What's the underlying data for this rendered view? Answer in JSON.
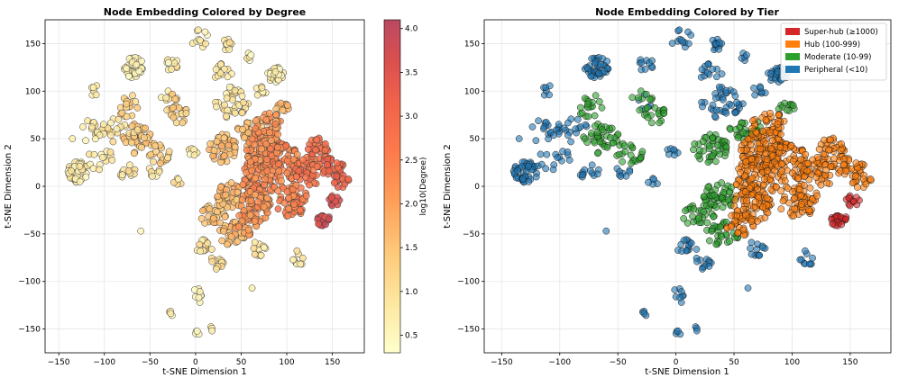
{
  "chart_data": [
    {
      "type": "scatter",
      "title": "Node Embedding Colored by Degree",
      "xlabel": "t-SNE Dimension 1",
      "ylabel": "t-SNE Dimension 2",
      "xlim": [
        -165,
        185
      ],
      "ylim": [
        -175,
        175
      ],
      "xticks": [
        -150,
        -100,
        -50,
        0,
        50,
        100,
        150
      ],
      "yticks": [
        -150,
        -100,
        -50,
        0,
        50,
        100,
        150
      ],
      "grid": true,
      "colorbar": {
        "label": "log10(Degree)",
        "range": [
          0.3,
          4.1
        ],
        "ticks": [
          "0.5",
          "1.0",
          "1.5",
          "2.0",
          "2.5",
          "3.0",
          "3.5",
          "4.0"
        ],
        "tick_values": [
          0.5,
          1.0,
          1.5,
          2.0,
          2.5,
          3.0,
          3.5,
          4.0
        ],
        "colors": [
          "#ffffcc",
          "#fde7a0",
          "#fec97a",
          "#fea05a",
          "#fc7b4c",
          "#f0634b",
          "#d94f4f",
          "#b84a62"
        ]
      }
    },
    {
      "type": "scatter",
      "title": "Node Embedding Colored by Tier",
      "xlabel": "t-SNE Dimension 1",
      "ylabel": "t-SNE Dimension 2",
      "xlim": [
        -165,
        185
      ],
      "ylim": [
        -175,
        175
      ],
      "xticks": [
        -150,
        -100,
        -50,
        0,
        50,
        100,
        150
      ],
      "yticks": [
        -150,
        -100,
        -50,
        0,
        50,
        100,
        150
      ],
      "grid": true,
      "legend": {
        "position": "top-right",
        "entries": [
          {
            "label": "Super-hub (≥1000)",
            "color": "#d62728"
          },
          {
            "label": "Hub (100-999)",
            "color": "#ff7f0e"
          },
          {
            "label": "Moderate (10-99)",
            "color": "#2ca02c"
          },
          {
            "label": "Peripheral (<10)",
            "color": "#1f77b4"
          }
        ]
      }
    }
  ],
  "clusters": [
    {
      "cx": -128,
      "cy": 15,
      "r": 12,
      "n": 45,
      "tier": "peripheral",
      "deg": 0.7
    },
    {
      "cx": -68,
      "cy": 125,
      "r": 11,
      "n": 40,
      "tier": "peripheral",
      "deg": 0.6
    },
    {
      "cx": 88,
      "cy": 118,
      "r": 9,
      "n": 28,
      "tier": "peripheral",
      "deg": 0.6
    },
    {
      "cx": 35,
      "cy": 150,
      "r": 7,
      "n": 14,
      "tier": "peripheral",
      "deg": 0.8
    },
    {
      "cx": 5,
      "cy": 155,
      "r": 10,
      "n": 12,
      "tier": "peripheral",
      "deg": 0.7
    },
    {
      "cx": 40,
      "cy": 88,
      "r": 18,
      "n": 40,
      "tier": "peripheral",
      "deg": 0.9
    },
    {
      "cx": -90,
      "cy": 60,
      "r": 14,
      "n": 20,
      "tier": "peripheral",
      "deg": 0.9
    },
    {
      "cx": -115,
      "cy": 58,
      "r": 12,
      "n": 14,
      "tier": "peripheral",
      "deg": 0.8
    },
    {
      "cx": -105,
      "cy": 30,
      "r": 14,
      "n": 14,
      "tier": "peripheral",
      "deg": 0.8
    },
    {
      "cx": -75,
      "cy": 15,
      "r": 10,
      "n": 12,
      "tier": "peripheral",
      "deg": 0.9
    },
    {
      "cx": -45,
      "cy": 15,
      "r": 7,
      "n": 8,
      "tier": "peripheral",
      "deg": 0.9
    },
    {
      "cx": -110,
      "cy": 100,
      "r": 6,
      "n": 6,
      "tier": "peripheral",
      "deg": 0.8
    },
    {
      "cx": -25,
      "cy": 128,
      "r": 8,
      "n": 10,
      "tier": "peripheral",
      "deg": 0.7
    },
    {
      "cx": 30,
      "cy": 120,
      "r": 10,
      "n": 14,
      "tier": "peripheral",
      "deg": 0.8
    },
    {
      "cx": 70,
      "cy": 100,
      "r": 8,
      "n": 8,
      "tier": "peripheral",
      "deg": 0.9
    },
    {
      "cx": 58,
      "cy": 135,
      "r": 5,
      "n": 5,
      "tier": "peripheral",
      "deg": 0.7
    },
    {
      "cx": -20,
      "cy": 5,
      "r": 5,
      "n": 5,
      "tier": "peripheral",
      "deg": 0.9
    },
    {
      "cx": 0,
      "cy": 40,
      "r": 9,
      "n": 7,
      "tier": "peripheral",
      "deg": 0.7
    },
    {
      "cx": -30,
      "cy": 90,
      "r": 11,
      "n": 14,
      "tier": "mixed",
      "deg": 1.0
    },
    {
      "cx": 10,
      "cy": -65,
      "r": 9,
      "n": 14,
      "tier": "peripheral",
      "deg": 1.0
    },
    {
      "cx": 25,
      "cy": -80,
      "r": 9,
      "n": 12,
      "tier": "peripheral",
      "deg": 1.0
    },
    {
      "cx": 70,
      "cy": -65,
      "r": 9,
      "n": 12,
      "tier": "peripheral",
      "deg": 0.9
    },
    {
      "cx": 113,
      "cy": -75,
      "r": 8,
      "n": 10,
      "tier": "peripheral",
      "deg": 0.8
    },
    {
      "cx": 5,
      "cy": -115,
      "r": 9,
      "n": 8,
      "tier": "peripheral",
      "deg": 0.6
    },
    {
      "cx": -28,
      "cy": -135,
      "r": 4,
      "n": 4,
      "tier": "peripheral",
      "deg": 0.6
    },
    {
      "cx": 0,
      "cy": -155,
      "r": 4,
      "n": 4,
      "tier": "peripheral",
      "deg": 0.5
    },
    {
      "cx": 18,
      "cy": -150,
      "r": 3,
      "n": 3,
      "tier": "peripheral",
      "deg": 0.5
    },
    {
      "cx": -60,
      "cy": -47,
      "r": 0,
      "n": 1,
      "tier": "peripheral",
      "deg": 0.7
    },
    {
      "cx": 62,
      "cy": -107,
      "r": 0,
      "n": 1,
      "tier": "peripheral",
      "deg": 0.7
    },
    {
      "cx": -135,
      "cy": 50,
      "r": 0,
      "n": 1,
      "tier": "peripheral",
      "deg": 0.7
    },
    {
      "cx": -75,
      "cy": 85,
      "r": 12,
      "n": 18,
      "tier": "moderate",
      "deg": 1.3
    },
    {
      "cx": -65,
      "cy": 50,
      "r": 16,
      "n": 40,
      "tier": "moderate",
      "deg": 1.4
    },
    {
      "cx": -40,
      "cy": 35,
      "r": 12,
      "n": 22,
      "tier": "moderate",
      "deg": 1.4
    },
    {
      "cx": -20,
      "cy": 75,
      "r": 12,
      "n": 18,
      "tier": "moderate",
      "deg": 1.3
    },
    {
      "cx": 20,
      "cy": -30,
      "r": 14,
      "n": 28,
      "tier": "moderate",
      "deg": 1.5
    },
    {
      "cx": 30,
      "cy": 40,
      "r": 15,
      "n": 45,
      "tier": "moderate",
      "deg": 1.6
    },
    {
      "cx": 38,
      "cy": -10,
      "r": 14,
      "n": 45,
      "tier": "moderate",
      "deg": 1.6
    },
    {
      "cx": 60,
      "cy": 60,
      "r": 14,
      "n": 30,
      "tier": "moderate",
      "deg": 1.6
    },
    {
      "cx": 40,
      "cy": -50,
      "r": 14,
      "n": 30,
      "tier": "moderate",
      "deg": 1.6
    },
    {
      "cx": 95,
      "cy": 80,
      "r": 8,
      "n": 12,
      "tier": "moderate",
      "deg": 1.7
    },
    {
      "cx": 75,
      "cy": 40,
      "r": 20,
      "n": 90,
      "tier": "hub",
      "deg": 2.2
    },
    {
      "cx": 70,
      "cy": 10,
      "r": 20,
      "n": 90,
      "tier": "hub",
      "deg": 2.3
    },
    {
      "cx": 95,
      "cy": 25,
      "r": 20,
      "n": 80,
      "tier": "hub",
      "deg": 2.4
    },
    {
      "cx": 65,
      "cy": -20,
      "r": 18,
      "n": 70,
      "tier": "hub",
      "deg": 2.2
    },
    {
      "cx": 105,
      "cy": -15,
      "r": 18,
      "n": 60,
      "tier": "hub",
      "deg": 2.5
    },
    {
      "cx": 125,
      "cy": 15,
      "r": 16,
      "n": 50,
      "tier": "hub",
      "deg": 2.7
    },
    {
      "cx": 135,
      "cy": 40,
      "r": 12,
      "n": 30,
      "tier": "hub",
      "deg": 2.8
    },
    {
      "cx": 80,
      "cy": 65,
      "r": 15,
      "n": 40,
      "tier": "hub",
      "deg": 2.1
    },
    {
      "cx": 55,
      "cy": -40,
      "r": 12,
      "n": 30,
      "tier": "hub",
      "deg": 2.1
    },
    {
      "cx": 150,
      "cy": 20,
      "r": 12,
      "n": 30,
      "tier": "hub",
      "deg": 3.0
    },
    {
      "cx": 160,
      "cy": 5,
      "r": 8,
      "n": 15,
      "tier": "hub",
      "deg": 3.1
    },
    {
      "cx": 140,
      "cy": -35,
      "r": 7,
      "n": 25,
      "tier": "superhub",
      "deg": 3.8
    },
    {
      "cx": 152,
      "cy": -15,
      "r": 6,
      "n": 12,
      "tier": "superhub",
      "deg": 3.6
    }
  ]
}
